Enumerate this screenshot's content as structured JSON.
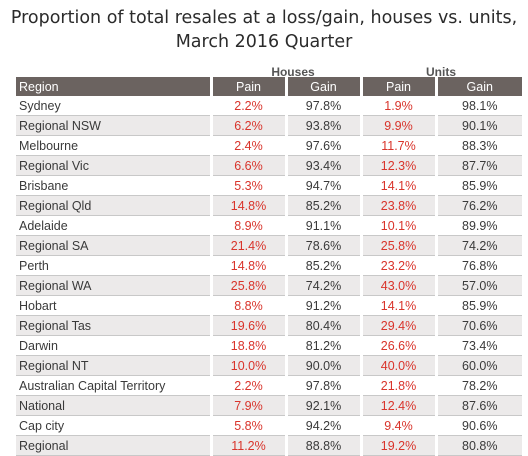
{
  "title": {
    "line1": "Proportion of total resales at a loss/gain, houses vs. units,",
    "line2": "March 2016 Quarter"
  },
  "table": {
    "group_headers": {
      "houses": "Houses",
      "units": "Units"
    },
    "columns": [
      "Region",
      "Pain",
      "Gain",
      "Pain",
      "Gain"
    ],
    "rows": [
      [
        "Sydney",
        "2.2%",
        "97.8%",
        "1.9%",
        "98.1%"
      ],
      [
        "Regional NSW",
        "6.2%",
        "93.8%",
        "9.9%",
        "90.1%"
      ],
      [
        "Melbourne",
        "2.4%",
        "97.6%",
        "11.7%",
        "88.3%"
      ],
      [
        "Regional Vic",
        "6.6%",
        "93.4%",
        "12.3%",
        "87.7%"
      ],
      [
        "Brisbane",
        "5.3%",
        "94.7%",
        "14.1%",
        "85.9%"
      ],
      [
        "Regional Qld",
        "14.8%",
        "85.2%",
        "23.8%",
        "76.2%"
      ],
      [
        "Adelaide",
        "8.9%",
        "91.1%",
        "10.1%",
        "89.9%"
      ],
      [
        "Regional SA",
        "21.4%",
        "78.6%",
        "25.8%",
        "74.2%"
      ],
      [
        "Perth",
        "14.8%",
        "85.2%",
        "23.2%",
        "76.8%"
      ],
      [
        "Regional WA",
        "25.8%",
        "74.2%",
        "43.0%",
        "57.0%"
      ],
      [
        "Hobart",
        "8.8%",
        "91.2%",
        "14.1%",
        "85.9%"
      ],
      [
        "Regional Tas",
        "19.6%",
        "80.4%",
        "29.4%",
        "70.6%"
      ],
      [
        "Darwin",
        "18.8%",
        "81.2%",
        "26.6%",
        "73.4%"
      ],
      [
        "Regional NT",
        "10.0%",
        "90.0%",
        "40.0%",
        "60.0%"
      ],
      [
        "Australian Capital Territory",
        "2.2%",
        "97.8%",
        "21.8%",
        "78.2%"
      ],
      [
        "National",
        "7.9%",
        "92.1%",
        "12.4%",
        "87.6%"
      ],
      [
        "Cap city",
        "5.8%",
        "94.2%",
        "9.4%",
        "90.6%"
      ],
      [
        "Regional",
        "11.2%",
        "88.8%",
        "19.2%",
        "80.8%"
      ]
    ]
  },
  "colors": {
    "header_bg": "#6b6360",
    "pain": "#d9342b",
    "gain": "#3a3a3a",
    "row_alt_bg": "#eceaea"
  }
}
